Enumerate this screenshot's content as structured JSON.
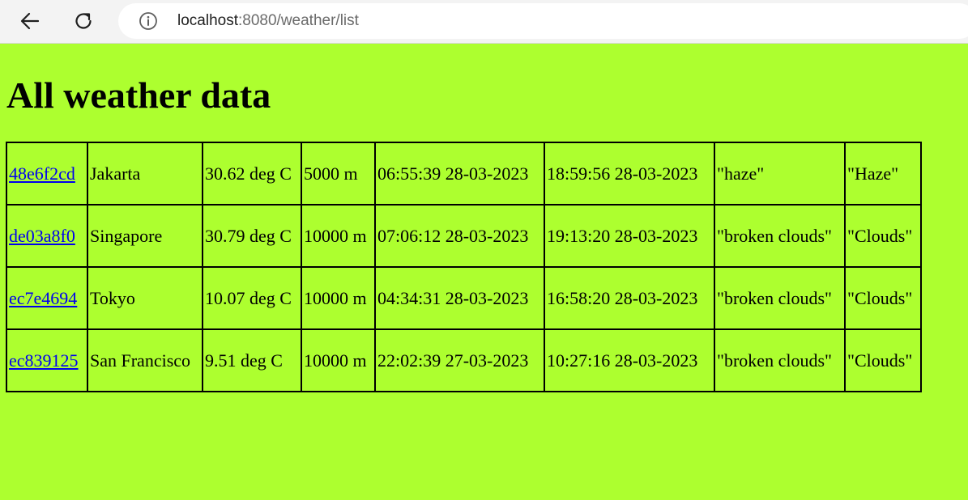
{
  "browser": {
    "url_host": "localhost",
    "url_rest": ":8080/weather/list",
    "icons": {
      "back": "arrow-left-icon",
      "reload": "reload-icon",
      "site_info": "info-icon"
    }
  },
  "page": {
    "title": "All weather data",
    "background_color": "#adff2f",
    "link_color": "#0000ee"
  },
  "rows": [
    {
      "id": "48e6f2cd",
      "city": "Jakarta",
      "temperature": "30.62 deg C",
      "visibility": "5000 m",
      "sunrise": "06:55:39 28-03-2023",
      "sunset": "18:59:56 28-03-2023",
      "description": "\"haze\"",
      "main": "\"Haze\""
    },
    {
      "id": "de03a8f0",
      "city": "Singapore",
      "temperature": "30.79 deg C",
      "visibility": "10000 m",
      "sunrise": "07:06:12 28-03-2023",
      "sunset": "19:13:20 28-03-2023",
      "description": "\"broken clouds\"",
      "main": "\"Clouds\""
    },
    {
      "id": "ec7e4694",
      "city": "Tokyo",
      "temperature": "10.07 deg C",
      "visibility": "10000 m",
      "sunrise": "04:34:31 28-03-2023",
      "sunset": "16:58:20 28-03-2023",
      "description": "\"broken clouds\"",
      "main": "\"Clouds\""
    },
    {
      "id": "ec839125",
      "city": "San Francisco",
      "temperature": "9.51 deg C",
      "visibility": "10000 m",
      "sunrise": "22:02:39 27-03-2023",
      "sunset": "10:27:16 28-03-2023",
      "description": "\"broken clouds\"",
      "main": "\"Clouds\""
    }
  ]
}
